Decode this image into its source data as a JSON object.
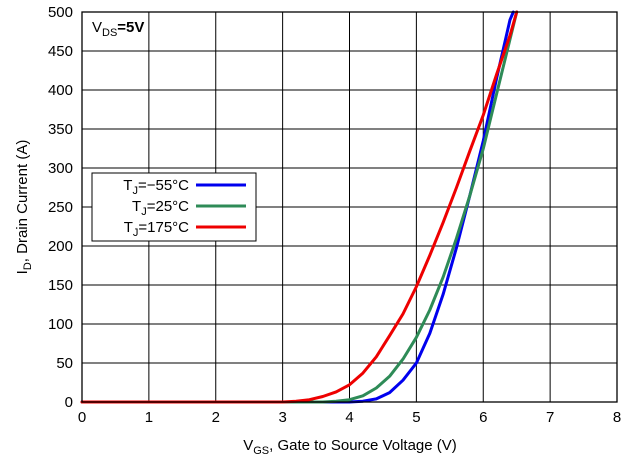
{
  "chart_data": {
    "type": "line",
    "title": "",
    "annotation": {
      "main": "V",
      "sub": "DS",
      "rest": "=5V"
    },
    "xlabel": {
      "main": "V",
      "sub": "GS",
      "rest": ", Gate to Source Voltage (V)"
    },
    "ylabel": {
      "main": "I",
      "sub": "D",
      "rest": ", Drain Current (A)"
    },
    "xlim": [
      0,
      8
    ],
    "ylim": [
      0,
      500
    ],
    "x_ticks": [
      "0",
      "1",
      "2",
      "3",
      "4",
      "5",
      "6",
      "7",
      "8"
    ],
    "y_ticks": [
      "0",
      "50",
      "100",
      "150",
      "200",
      "250",
      "300",
      "350",
      "400",
      "450",
      "500"
    ],
    "grid": true,
    "legend_placement": "center-left",
    "series": [
      {
        "name": {
          "main": "T",
          "sub": "J",
          "rest": "=−55°C"
        },
        "color": "#0000ee",
        "x": [
          0,
          3.5,
          4.0,
          4.2,
          4.4,
          4.6,
          4.8,
          5.0,
          5.2,
          5.4,
          5.6,
          5.8,
          6.0,
          6.2,
          6.4,
          6.45
        ],
        "y": [
          0,
          0,
          0,
          1,
          4,
          12,
          28,
          50,
          88,
          138,
          198,
          265,
          335,
          415,
          490,
          500
        ]
      },
      {
        "name": {
          "main": "T",
          "sub": "J",
          "rest": "=25°C"
        },
        "color": "#2e8b57",
        "x": [
          0,
          3.2,
          3.6,
          3.8,
          4.0,
          4.2,
          4.4,
          4.6,
          4.8,
          5.0,
          5.2,
          5.4,
          5.6,
          5.8,
          6.0,
          6.2,
          6.4,
          6.5
        ],
        "y": [
          0,
          0,
          0,
          1,
          3,
          8,
          18,
          33,
          55,
          83,
          118,
          160,
          210,
          265,
          325,
          395,
          465,
          500
        ]
      },
      {
        "name": {
          "main": "T",
          "sub": "J",
          "rest": "=175°C"
        },
        "color": "#ee0000",
        "x": [
          0,
          3.0,
          3.2,
          3.4,
          3.6,
          3.8,
          4.0,
          4.2,
          4.4,
          4.6,
          4.8,
          5.0,
          5.2,
          5.4,
          5.6,
          5.8,
          6.0,
          6.2,
          6.4,
          6.5
        ],
        "y": [
          0,
          0,
          1,
          3,
          7,
          13,
          22,
          37,
          58,
          85,
          113,
          148,
          188,
          230,
          275,
          322,
          368,
          420,
          470,
          500
        ]
      }
    ]
  }
}
